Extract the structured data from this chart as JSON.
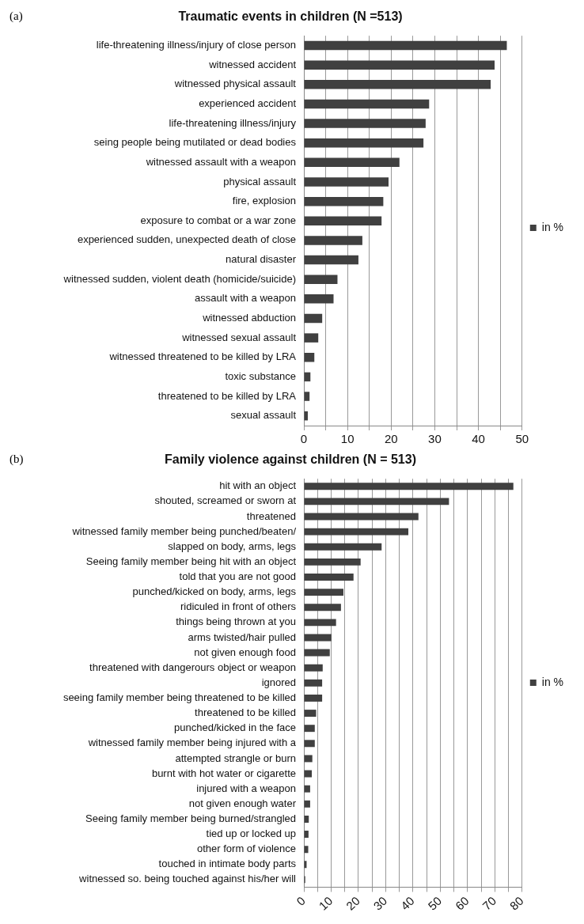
{
  "chart_data": [
    {
      "type": "bar",
      "orientation": "horizontal",
      "title": "Traumatic events in children (N =513)",
      "annotations": [
        "(a)"
      ],
      "categories": [
        "life-threatening illness/injury of close person",
        "witnessed accident",
        "witnessed physical assault",
        "experienced accident",
        "life-threatening illness/injury",
        "seing people being mutilated or dead bodies",
        "witnessed assault with a weapon",
        "physical assault",
        "fire, explosion",
        "exposure to combat or a war zone",
        "experienced sudden, unexpected death of close",
        "natural disaster",
        "witnessed sudden, violent death (homicide/suicide)",
        "assault with a weapon",
        "witnessed abduction",
        "witnessed sexual assault",
        "witnessed threatened to be killed by LRA",
        "toxic substance",
        "threatened to be killed by LRA",
        "sexual assault"
      ],
      "series": [
        {
          "name": "in %",
          "color": "#404040",
          "values": [
            46.5,
            43.7,
            42.8,
            28.7,
            27.9,
            27.4,
            21.9,
            19.4,
            18.2,
            17.8,
            13.4,
            12.5,
            7.7,
            6.8,
            4.2,
            3.3,
            2.4,
            1.5,
            1.3,
            0.9
          ]
        }
      ],
      "xlim": [
        0,
        50
      ],
      "xticks": [
        0,
        {
          "value": 5,
          "label": null
        },
        10,
        {
          "value": 15,
          "label": null
        },
        20,
        {
          "value": 25,
          "label": null
        },
        30,
        {
          "value": 35,
          "label": null
        },
        40,
        {
          "value": 45,
          "label": null
        },
        50
      ],
      "grid": "x",
      "legend": "right"
    },
    {
      "type": "bar",
      "orientation": "horizontal",
      "title": "Family violence against children (N = 513)",
      "annotations": [
        "(b)"
      ],
      "categories": [
        "hit with an object",
        "shouted, screamed or sworn at",
        "threatened",
        "witnessed family member being punched/beaten/",
        "slapped on body, arms, legs",
        "Seeing family member being hit with an object",
        "told that you are not good",
        "punched/kicked on body, arms, legs",
        "ridiculed in front of others",
        "things being thrown at you",
        "arms twisted/hair pulled",
        "not given enough food",
        "threatened with dangerours object or weapon",
        "ignored",
        "seeing family member being threatened to be killed",
        "threatened to be killed",
        "punched/kicked in the face",
        "witnessed family member being injured with a",
        "attempted strangle or burn",
        "burnt with hot water or cigarette",
        "injured with a weapon",
        "not given enough water",
        "Seeing family member being burned/strangled",
        "tied up or locked up",
        "other form of violence",
        "touched in intimate body parts",
        "witnessed so. being touched against his/her will"
      ],
      "series": [
        {
          "name": "in %",
          "color": "#404040",
          "values": [
            76.8,
            53.2,
            42.0,
            38.3,
            28.5,
            20.8,
            18.2,
            14.5,
            13.6,
            11.8,
            10.1,
            9.5,
            6.9,
            6.7,
            6.7,
            4.5,
            4.0,
            4.0,
            3.1,
            2.9,
            2.3,
            2.3,
            1.8,
            1.7,
            1.6,
            1.0,
            0.5
          ]
        }
      ],
      "xlim": [
        0,
        80
      ],
      "xticks": [
        0,
        {
          "value": 5,
          "label": null
        },
        10,
        {
          "value": 15,
          "label": null
        },
        20,
        {
          "value": 25,
          "label": null
        },
        30,
        {
          "value": 35,
          "label": null
        },
        40,
        {
          "value": 45,
          "label": null
        },
        50,
        {
          "value": 55,
          "label": null
        },
        60,
        {
          "value": 65,
          "label": null
        },
        70,
        {
          "value": 75,
          "label": null
        },
        80
      ],
      "grid": "x",
      "legend": "right"
    }
  ]
}
